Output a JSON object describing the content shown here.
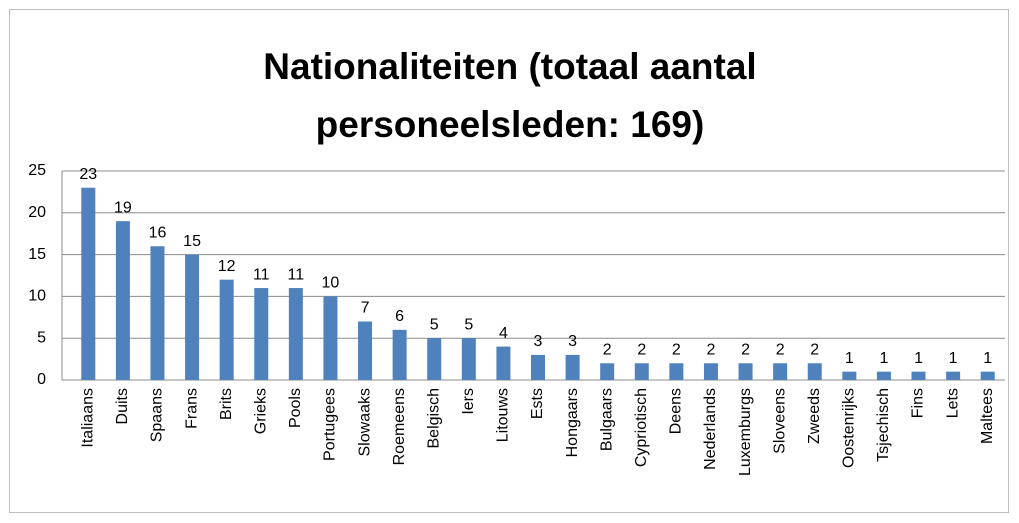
{
  "chart_data": {
    "type": "bar",
    "title": "Nationaliteiten (totaal aantal personeelsleden: 169)",
    "categories": [
      "Italiaans",
      "Duits",
      "Spaans",
      "Frans",
      "Brits",
      "Grieks",
      "Pools",
      "Portugees",
      "Slowaaks",
      "Roemeens",
      "Belgisch",
      "Iers",
      "Litouws",
      "Ests",
      "Hongaars",
      "Bulgaars",
      "Cypriotisch",
      "Deens",
      "Nederlands",
      "Luxemburgs",
      "Sloveens",
      "Zweeds",
      "Oostenrijks",
      "Tsjechisch",
      "Fins",
      "Lets",
      "Maltees"
    ],
    "values": [
      23,
      19,
      16,
      15,
      12,
      11,
      11,
      10,
      7,
      6,
      5,
      5,
      4,
      3,
      3,
      2,
      2,
      2,
      2,
      2,
      2,
      2,
      1,
      1,
      1,
      1,
      1
    ],
    "color": "#4f81bd",
    "ylim": [
      0,
      25
    ],
    "yticks": [
      0,
      5,
      10,
      15,
      20,
      25
    ],
    "grid": true
  }
}
